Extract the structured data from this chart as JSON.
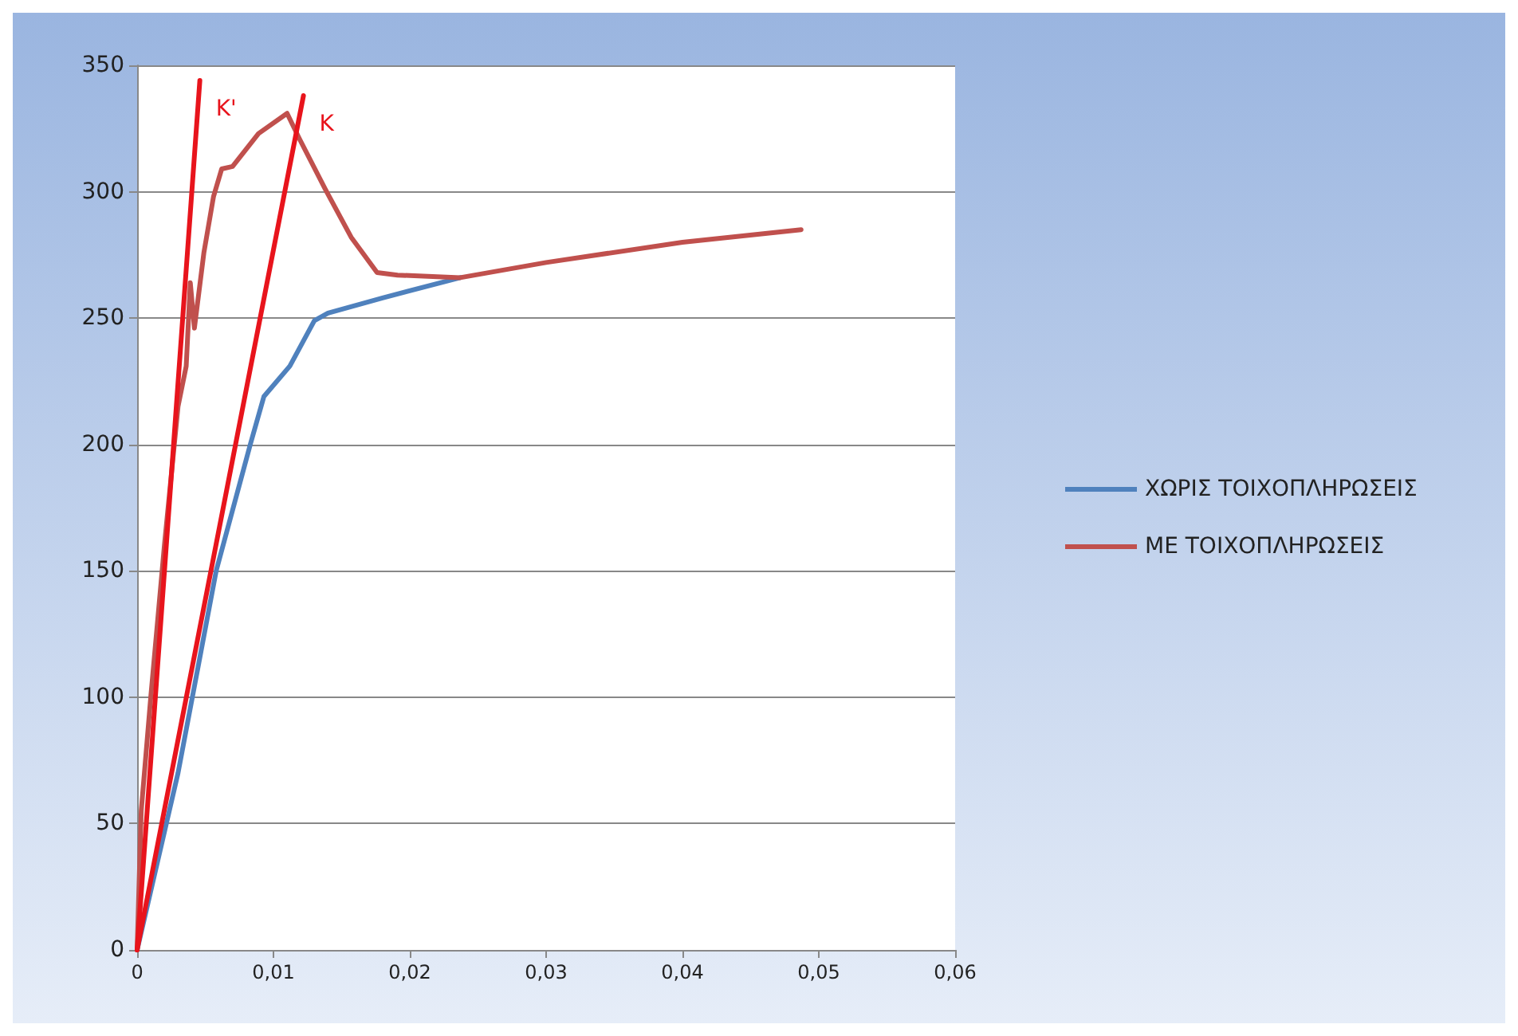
{
  "chart_data": {
    "type": "line",
    "xlim": [
      0,
      0.06
    ],
    "xticks": [
      {
        "value": 0,
        "label": "0"
      },
      {
        "value": 0.01,
        "label": "0,01"
      },
      {
        "value": 0.02,
        "label": "0,02"
      },
      {
        "value": 0.03,
        "label": "0,03"
      },
      {
        "value": 0.04,
        "label": "0,04"
      },
      {
        "value": 0.05,
        "label": "0,05"
      },
      {
        "value": 0.06,
        "label": "0,06"
      }
    ],
    "ylim": [
      0,
      350
    ],
    "yticks": [
      0,
      50,
      100,
      150,
      200,
      250,
      300,
      350
    ],
    "grid": "y",
    "legend": "right",
    "marker": "none",
    "line_style": "solid",
    "series": [
      {
        "name": "ΧΩΡΙΣ ΤΟΙΧΟΠΛΗΡΩΣΕΙΣ",
        "color": "#4f81bd",
        "x": [
          0,
          0.003,
          0.0058,
          0.0083,
          0.0093,
          0.0112,
          0.013,
          0.014,
          0.018,
          0.0237
        ],
        "values": [
          0,
          70,
          150,
          200,
          219,
          231,
          249,
          252,
          258,
          266
        ]
      },
      {
        "name": "ΜΕ ΤΟΙΧΟΠΛΗΡΩΣΕΙΣ",
        "color": "#c0504d",
        "x": [
          0,
          0.0003,
          0.001,
          0.002,
          0.003,
          0.0036,
          0.0039,
          0.0042,
          0.0049,
          0.0056,
          0.0062,
          0.007,
          0.0089,
          0.011,
          0.0119,
          0.0138,
          0.0157,
          0.0176,
          0.0191,
          0.0237,
          0.03,
          0.04,
          0.0487
        ],
        "values": [
          0,
          55,
          100,
          160,
          215,
          231,
          264,
          246,
          276,
          298,
          309,
          310,
          323,
          331,
          321,
          301,
          282,
          268,
          267,
          266,
          272,
          280,
          285
        ]
      },
      {
        "name": "K'",
        "color": "#e8141c",
        "x": [
          0,
          0.0046
        ],
        "values": [
          0,
          344
        ]
      },
      {
        "name": "K",
        "color": "#e8141c",
        "x": [
          0,
          0.0122
        ],
        "values": [
          0,
          338
        ]
      }
    ]
  }
}
